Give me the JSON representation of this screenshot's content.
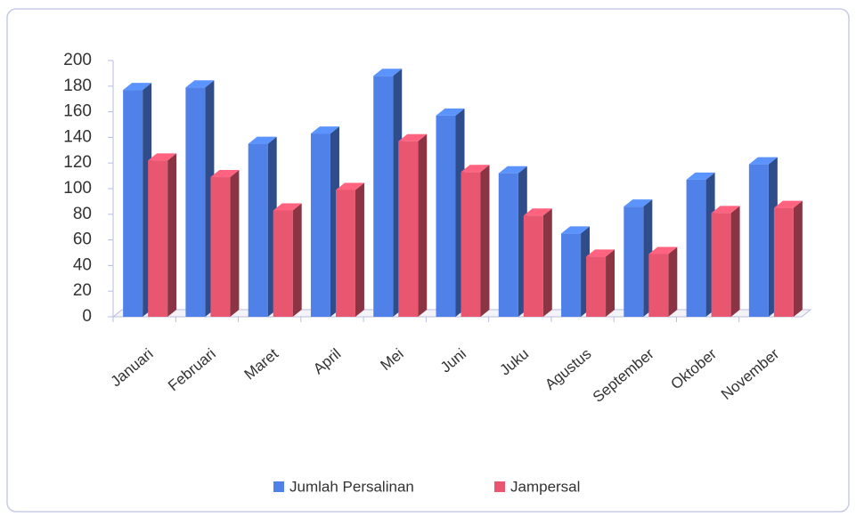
{
  "chart_data": {
    "type": "bar3d",
    "categories": [
      "Januari",
      "Februari",
      "Maret",
      "April",
      "Mei",
      "Juni",
      "Juku",
      "Agustus",
      "September",
      "Oktober",
      "November"
    ],
    "series": [
      {
        "name": "Jumlah Persalinan",
        "color": "#4f81e8",
        "values": [
          177,
          179,
          135,
          143,
          188,
          157,
          112,
          65,
          86,
          107,
          119
        ]
      },
      {
        "name": "Jampersal",
        "color": "#e8566f",
        "values": [
          122,
          109,
          83,
          99,
          137,
          113,
          79,
          47,
          49,
          81,
          85
        ]
      }
    ],
    "ylim": [
      0,
      200
    ],
    "yticks": [
      0,
      20,
      40,
      60,
      80,
      100,
      120,
      140,
      160,
      180,
      200
    ],
    "legend": "bottom"
  }
}
